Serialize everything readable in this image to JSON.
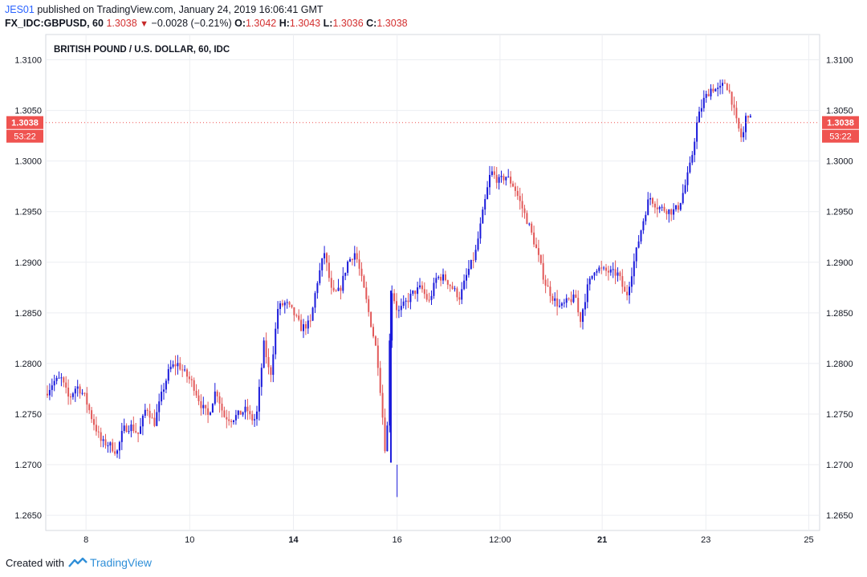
{
  "header": {
    "user": "JES01",
    "published": " published on TradingView.com, January 24, 2019 16:06:41 GMT",
    "symbol": "FX_IDC:GBPUSD, 60",
    "last": "1.3038",
    "change": "−0.0028 (−0.21%)",
    "o_label": "O:",
    "o_value": "1.3042",
    "h_label": "H:",
    "h_value": "1.3043",
    "l_label": "L:",
    "l_value": "1.3036",
    "c_label": "C:",
    "c_value": "1.3038"
  },
  "footer": {
    "created_with": "Created with",
    "brand": "TradingView",
    "logo_icon": "tradingview-logo-icon"
  },
  "colors": {
    "up": "#1a1adb",
    "down": "#e25858",
    "price_tag": "#ef5350",
    "grid": "#eceef2",
    "axis": "#8a8e99"
  },
  "chart_data": {
    "type": "candlestick",
    "title": "BRITISH POUND / U.S. DOLLAR, 60, IDC",
    "ylim": [
      1.2635,
      1.3125
    ],
    "y_ticks": [
      "1.2650",
      "1.2700",
      "1.2750",
      "1.2800",
      "1.2850",
      "1.2900",
      "1.2950",
      "1.3000",
      "1.3050",
      "1.3100"
    ],
    "x_ticks": [
      {
        "label": "8",
        "pos": 0.052,
        "bold": false
      },
      {
        "label": "10",
        "pos": 0.186,
        "bold": false
      },
      {
        "label": "14",
        "pos": 0.32,
        "bold": true
      },
      {
        "label": "16",
        "pos": 0.454,
        "bold": false
      },
      {
        "label": "12:00",
        "pos": 0.587,
        "bold": false
      },
      {
        "label": "21",
        "pos": 0.719,
        "bold": true
      },
      {
        "label": "23",
        "pos": 0.853,
        "bold": false
      },
      {
        "label": "25",
        "pos": 0.986,
        "bold": false
      }
    ],
    "last_price": "1.3038",
    "countdown": "53:22",
    "grid": true,
    "path": [
      [
        0.0,
        1.277
      ],
      [
        0.01,
        1.2782
      ],
      [
        0.02,
        1.2785
      ],
      [
        0.03,
        1.2765
      ],
      [
        0.04,
        1.2778
      ],
      [
        0.05,
        1.2768
      ],
      [
        0.06,
        1.2745
      ],
      [
        0.072,
        1.2722
      ],
      [
        0.082,
        1.272
      ],
      [
        0.092,
        1.2712
      ],
      [
        0.1,
        1.2735
      ],
      [
        0.11,
        1.2738
      ],
      [
        0.12,
        1.273
      ],
      [
        0.13,
        1.2758
      ],
      [
        0.14,
        1.274
      ],
      [
        0.15,
        1.277
      ],
      [
        0.16,
        1.2795
      ],
      [
        0.17,
        1.28
      ],
      [
        0.18,
        1.279
      ],
      [
        0.19,
        1.278
      ],
      [
        0.2,
        1.276
      ],
      [
        0.21,
        1.2748
      ],
      [
        0.22,
        1.2775
      ],
      [
        0.23,
        1.2748
      ],
      [
        0.24,
        1.2745
      ],
      [
        0.25,
        1.275
      ],
      [
        0.26,
        1.2755
      ],
      [
        0.265,
        1.2745
      ],
      [
        0.272,
        1.2745
      ],
      [
        0.282,
        1.282
      ],
      [
        0.29,
        1.2785
      ],
      [
        0.3,
        1.2855
      ],
      [
        0.31,
        1.286
      ],
      [
        0.32,
        1.285
      ],
      [
        0.33,
        1.2835
      ],
      [
        0.342,
        1.284
      ],
      [
        0.35,
        1.2878
      ],
      [
        0.36,
        1.291
      ],
      [
        0.37,
        1.2868
      ],
      [
        0.38,
        1.2872
      ],
      [
        0.39,
        1.29
      ],
      [
        0.4,
        1.291
      ],
      [
        0.412,
        1.287
      ],
      [
        0.42,
        1.284
      ],
      [
        0.428,
        1.281
      ],
      [
        0.434,
        1.276
      ],
      [
        0.44,
        1.27
      ],
      [
        0.446,
        1.2875
      ],
      [
        0.455,
        1.285
      ],
      [
        0.465,
        1.286
      ],
      [
        0.475,
        1.287
      ],
      [
        0.485,
        1.2875
      ],
      [
        0.495,
        1.286
      ],
      [
        0.505,
        1.2885
      ],
      [
        0.515,
        1.2885
      ],
      [
        0.525,
        1.2875
      ],
      [
        0.535,
        1.2865
      ],
      [
        0.545,
        1.289
      ],
      [
        0.555,
        1.2908
      ],
      [
        0.565,
        1.295
      ],
      [
        0.575,
        1.299
      ],
      [
        0.585,
        1.298
      ],
      [
        0.595,
        1.2985
      ],
      [
        0.605,
        1.2975
      ],
      [
        0.615,
        1.2955
      ],
      [
        0.625,
        1.2935
      ],
      [
        0.635,
        1.291
      ],
      [
        0.645,
        1.288
      ],
      [
        0.655,
        1.2865
      ],
      [
        0.665,
        1.2855
      ],
      [
        0.675,
        1.2862
      ],
      [
        0.685,
        1.2865
      ],
      [
        0.69,
        1.284
      ],
      [
        0.7,
        1.2875
      ],
      [
        0.71,
        1.2895
      ],
      [
        0.72,
        1.2892
      ],
      [
        0.73,
        1.289
      ],
      [
        0.74,
        1.2888
      ],
      [
        0.75,
        1.2865
      ],
      [
        0.76,
        1.29
      ],
      [
        0.77,
        1.2935
      ],
      [
        0.78,
        1.2965
      ],
      [
        0.79,
        1.2955
      ],
      [
        0.8,
        1.2952
      ],
      [
        0.81,
        1.295
      ],
      [
        0.818,
        1.2955
      ],
      [
        0.826,
        1.2975
      ],
      [
        0.834,
        1.3
      ],
      [
        0.842,
        1.304
      ],
      [
        0.85,
        1.306
      ],
      [
        0.86,
        1.3072
      ],
      [
        0.87,
        1.307
      ],
      [
        0.878,
        1.3078
      ],
      [
        0.885,
        1.3065
      ],
      [
        0.892,
        1.304
      ],
      [
        0.9,
        1.302
      ],
      [
        0.906,
        1.305
      ],
      [
        0.912,
        1.3038
      ]
    ]
  }
}
